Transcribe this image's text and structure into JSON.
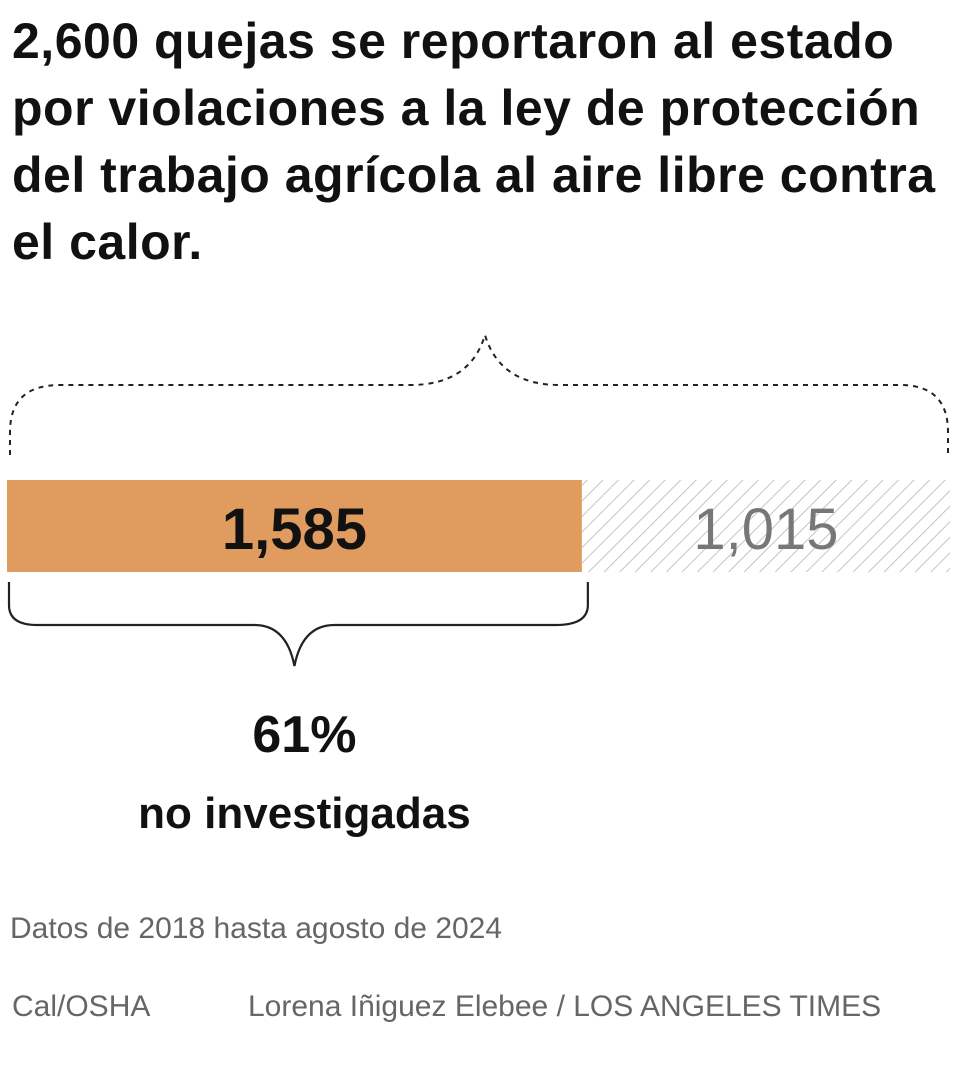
{
  "title": "2,600 quejas se reportaron al estado por violaciones a la ley de protección del trabajo agrícola al aire libre contra el calor.",
  "chart_data": {
    "type": "bar",
    "orientation": "horizontal-stacked",
    "total": 2600,
    "segments": [
      {
        "label": "1,585",
        "value": 1585,
        "color": "#e09b5e"
      },
      {
        "label": "1,015",
        "value": 1015,
        "color": "hatched-gray"
      }
    ],
    "annotation": {
      "percent": "61%",
      "text": "no investigadas"
    }
  },
  "note": "Datos de 2018 hasta agosto de 2024",
  "source": "Cal/OSHA",
  "credit": "Lorena Iñiguez Elebee / LOS ANGELES TIMES"
}
